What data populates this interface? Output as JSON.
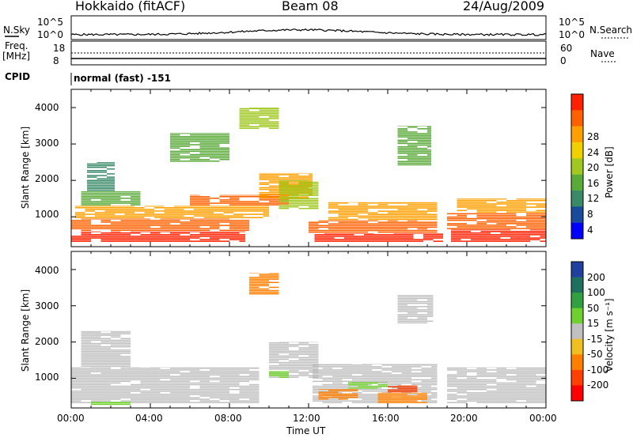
{
  "header": {
    "radar": "Hokkaido (fitACF)",
    "beam": "Beam 08",
    "date": "24/Aug/2009"
  },
  "strip": {
    "nsky_label": "N.Sky",
    "nsky_ticks": [
      "10^5",
      "10^0"
    ],
    "nsearch_label": "N.Search",
    "nsearch_ticks": [
      "10^5",
      "10^0"
    ],
    "freq_label_1": "Freq.",
    "freq_label_2": "[MHz]",
    "freq_ticks": [
      "18",
      "8"
    ],
    "nave_label": "Nave",
    "nave_ticks": [
      "60",
      "0"
    ],
    "cpid_label": "CPID",
    "cpid_text": "normal (fast) -151"
  },
  "chart_data": [
    {
      "type": "heatmap",
      "name": "power",
      "ylabel": "Slant Range [km]",
      "xlabel": "",
      "xlim_hours": [
        0,
        24
      ],
      "ylim": [
        180,
        4500
      ],
      "y_ticks": [
        "1000",
        "2000",
        "3000",
        "4000"
      ],
      "colorbar": {
        "label": "Power [dB]",
        "ticks": [
          "4",
          "8",
          "12",
          "16",
          "20",
          "24",
          "28"
        ],
        "colors": [
          "#0000ff",
          "#1a4a9a",
          "#3a8a6a",
          "#5aaa3a",
          "#a0c820",
          "#f0d000",
          "#ffa000",
          "#ff6000",
          "#ff2000"
        ]
      },
      "bands": [
        {
          "t0": 0.0,
          "t1": 8.8,
          "r0": 300,
          "r1": 600,
          "c": 8
        },
        {
          "t0": 0.0,
          "t1": 9.0,
          "r0": 600,
          "r1": 950,
          "c": 7
        },
        {
          "t0": 0.2,
          "t1": 10.0,
          "r0": 950,
          "r1": 1300,
          "c": 6
        },
        {
          "t0": 0.5,
          "t1": 3.5,
          "r0": 1300,
          "r1": 1700,
          "c": 3
        },
        {
          "t0": 0.8,
          "t1": 2.2,
          "r0": 1700,
          "r1": 2500,
          "c": 2
        },
        {
          "t0": 6.0,
          "t1": 11.0,
          "r0": 1300,
          "r1": 1600,
          "c": 7
        },
        {
          "t0": 9.5,
          "t1": 12.2,
          "r0": 1500,
          "r1": 2200,
          "c": 6
        },
        {
          "t0": 12.3,
          "t1": 18.8,
          "r0": 300,
          "r1": 550,
          "c": 8
        },
        {
          "t0": 12.0,
          "t1": 18.5,
          "r0": 550,
          "r1": 900,
          "c": 7
        },
        {
          "t0": 13.0,
          "t1": 18.5,
          "r0": 900,
          "r1": 1400,
          "c": 6
        },
        {
          "t0": 16.5,
          "t1": 18.2,
          "r0": 2400,
          "r1": 3500,
          "c": 3
        },
        {
          "t0": 19.2,
          "t1": 24.0,
          "r0": 300,
          "r1": 650,
          "c": 8
        },
        {
          "t0": 19.0,
          "t1": 24.0,
          "r0": 650,
          "r1": 1100,
          "c": 7
        },
        {
          "t0": 19.5,
          "t1": 24.0,
          "r0": 1100,
          "r1": 1500,
          "c": 6
        },
        {
          "t0": 8.5,
          "t1": 10.5,
          "r0": 3400,
          "r1": 4000,
          "c": 4
        },
        {
          "t0": 10.5,
          "t1": 12.5,
          "r0": 1200,
          "r1": 2000,
          "c": 4
        },
        {
          "t0": 5.0,
          "t1": 8.0,
          "r0": 2500,
          "r1": 3300,
          "c": 3
        }
      ]
    },
    {
      "type": "heatmap",
      "name": "velocity",
      "ylabel": "Slant Range [km]",
      "xlabel": "Time UT",
      "xlim_hours": [
        0,
        24
      ],
      "ylim": [
        180,
        4500
      ],
      "x_ticks": [
        "00:00",
        "04:00",
        "08:00",
        "12:00",
        "16:00",
        "20:00",
        "00:00"
      ],
      "y_ticks": [
        "1000",
        "2000",
        "3000",
        "4000"
      ],
      "colorbar": {
        "label": "Velocity [m s⁻¹]",
        "ticks": [
          "200",
          "100",
          "50",
          "15",
          "-15",
          "-50",
          "-100",
          "-200"
        ],
        "colors": [
          "#2040a0",
          "#207060",
          "#30a040",
          "#70d030",
          "#c0c0c0",
          "#f0c020",
          "#ff8000",
          "#ff4000",
          "#ff0000"
        ]
      },
      "bands": [
        {
          "t0": 0.0,
          "t1": 9.5,
          "r0": 300,
          "r1": 1300,
          "c": 4
        },
        {
          "t0": 12.2,
          "t1": 18.5,
          "r0": 300,
          "r1": 1400,
          "c": 4
        },
        {
          "t0": 19.0,
          "t1": 24.0,
          "r0": 300,
          "r1": 1300,
          "c": 4
        },
        {
          "t0": 0.5,
          "t1": 3.0,
          "r0": 1300,
          "r1": 2300,
          "c": 4
        },
        {
          "t0": 10.0,
          "t1": 12.5,
          "r0": 1000,
          "r1": 2000,
          "c": 4
        },
        {
          "t0": 16.5,
          "t1": 18.3,
          "r0": 2500,
          "r1": 3300,
          "c": 4
        },
        {
          "t0": 9.0,
          "t1": 10.5,
          "r0": 3300,
          "r1": 3900,
          "c": 6
        },
        {
          "t0": 14.0,
          "t1": 16.0,
          "r0": 700,
          "r1": 900,
          "c": 3
        },
        {
          "t0": 15.5,
          "t1": 18.0,
          "r0": 300,
          "r1": 600,
          "c": 6
        },
        {
          "t0": 16.0,
          "t1": 17.5,
          "r0": 600,
          "r1": 800,
          "c": 7
        },
        {
          "t0": 12.5,
          "t1": 14.5,
          "r0": 400,
          "r1": 700,
          "c": 6
        },
        {
          "t0": 10.0,
          "t1": 11.0,
          "r0": 1000,
          "r1": 1200,
          "c": 3
        },
        {
          "t0": 1.0,
          "t1": 3.0,
          "r0": 250,
          "r1": 350,
          "c": 3
        }
      ]
    }
  ]
}
